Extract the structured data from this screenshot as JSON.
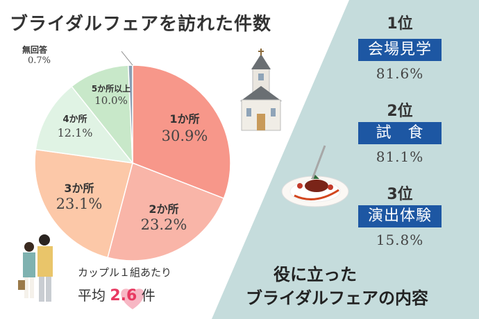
{
  "title": "ブライダルフェアを訪れた件数",
  "chart_data": {
    "type": "pie",
    "title": "ブライダルフェアを訪れた件数",
    "slices": [
      {
        "label": "1か所",
        "value": 30.9,
        "display": "30.9%",
        "color": "#f7978a"
      },
      {
        "label": "2か所",
        "value": 23.2,
        "display": "23.2%",
        "color": "#f9b5a8"
      },
      {
        "label": "3か所",
        "value": 23.1,
        "display": "23.1%",
        "color": "#fcc8a8"
      },
      {
        "label": "4か所",
        "value": 12.1,
        "display": "12.1%",
        "color": "#e0f3e4"
      },
      {
        "label": "5か所以上",
        "value": 10.0,
        "display": "10.0%",
        "color": "#c8e8c9"
      },
      {
        "label": "無回答",
        "value": 0.7,
        "display": "0.7%",
        "color": "#8aa0b4"
      }
    ]
  },
  "average": {
    "prefix": "カップル１組あたり",
    "label": "平均",
    "value": "2.6",
    "unit": "件"
  },
  "ranking": {
    "title_line1": "役に立った",
    "title_line2": "ブライダルフェアの内容",
    "items": [
      {
        "rank": "1位",
        "label": "会場見学",
        "value": "81.6%"
      },
      {
        "rank": "2位",
        "label": "試　食",
        "value": "81.1%"
      },
      {
        "rank": "3位",
        "label": "演出体験",
        "value": "15.8%"
      }
    ]
  },
  "colors": {
    "panel": "#c5dcdc",
    "box": "#1d57a3",
    "accent": "#e83a62"
  }
}
